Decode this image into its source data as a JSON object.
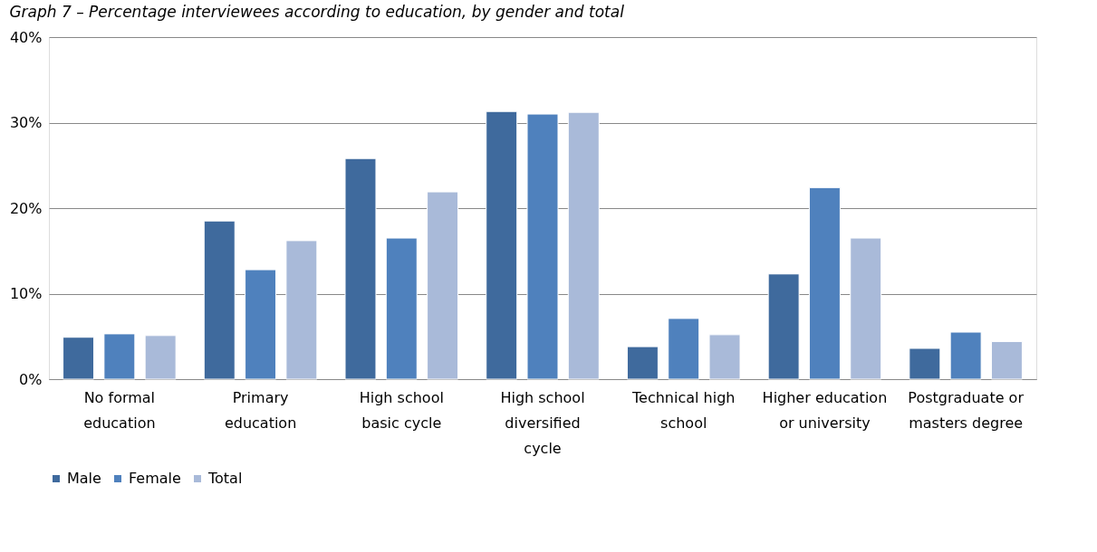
{
  "chart_data": {
    "type": "bar",
    "title": "Graph 7 – Percentage interviewees according to education, by gender and total",
    "categories": [
      "No formal education",
      "Primary education",
      "High school basic cycle",
      "High school diversified cycle",
      "Technical high school",
      "Higher education or university",
      "Postgraduate or masters degree"
    ],
    "series": [
      {
        "name": "Male",
        "color": "#3f6a9d",
        "values": [
          4.9,
          18.5,
          25.8,
          31.3,
          3.8,
          12.3,
          3.6
        ]
      },
      {
        "name": "Female",
        "color": "#4f81bd",
        "values": [
          5.3,
          12.8,
          16.5,
          31.0,
          7.1,
          22.4,
          5.5
        ]
      },
      {
        "name": "Total",
        "color": "#a9bad9",
        "values": [
          5.1,
          16.2,
          21.9,
          31.2,
          5.2,
          16.5,
          4.4
        ]
      }
    ],
    "ylim": [
      0,
      40
    ],
    "yticks": [
      {
        "value": 0,
        "label": "0%"
      },
      {
        "value": 10,
        "label": "10%"
      },
      {
        "value": 20,
        "label": "20%"
      },
      {
        "value": 30,
        "label": "30%"
      },
      {
        "value": 40,
        "label": "40%"
      }
    ],
    "grid": "y",
    "legend": "bottom"
  }
}
